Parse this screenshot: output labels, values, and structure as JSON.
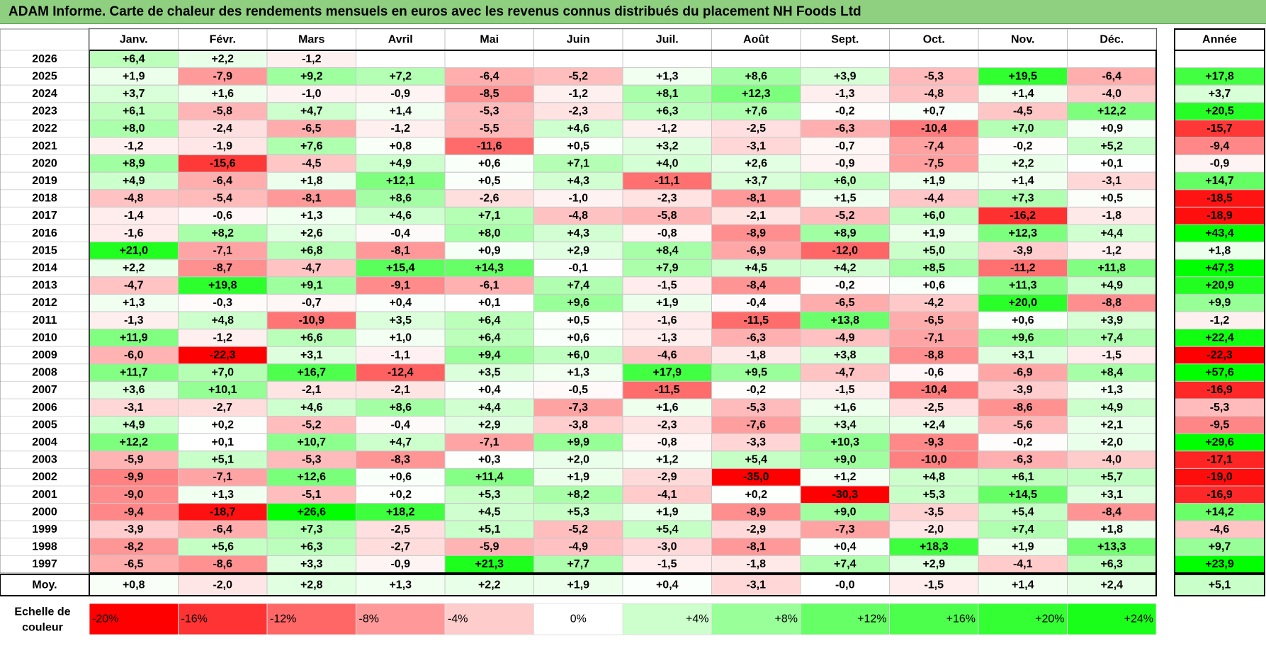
{
  "title": "ADAM Informe. Carte de chaleur des rendements mensuels en euros avec les revenus connus distribués du placement NH Foods Ltd",
  "chart_data": {
    "type": "heatmap",
    "columns": [
      "Janv.",
      "Févr.",
      "Mars",
      "Avril",
      "Mai",
      "Juin",
      "Juil.",
      "Août",
      "Sept.",
      "Oct.",
      "Nov.",
      "Déc."
    ],
    "year_column": "Année",
    "rows": [
      {
        "year": "2026",
        "months": [
          "+6,4",
          "+2,2",
          "-1,2",
          "",
          "",
          "",
          "",
          "",
          "",
          "",
          "",
          ""
        ],
        "annual": ""
      },
      {
        "year": "2025",
        "months": [
          "+1,9",
          "-7,9",
          "+9,2",
          "+7,2",
          "-6,4",
          "-5,2",
          "+1,3",
          "+8,6",
          "+3,9",
          "-5,3",
          "+19,5",
          "-6,4"
        ],
        "annual": "+17,8"
      },
      {
        "year": "2024",
        "months": [
          "+3,7",
          "+1,6",
          "-1,0",
          "-0,9",
          "-8,5",
          "-1,2",
          "+8,1",
          "+12,3",
          "-1,3",
          "-4,8",
          "+1,4",
          "-4,0"
        ],
        "annual": "+3,7"
      },
      {
        "year": "2023",
        "months": [
          "+6,1",
          "-5,8",
          "+4,7",
          "+1,4",
          "-5,3",
          "-2,3",
          "+6,3",
          "+7,6",
          "-0,2",
          "+0,7",
          "-4,5",
          "+12,2"
        ],
        "annual": "+20,5"
      },
      {
        "year": "2022",
        "months": [
          "+8,0",
          "-2,4",
          "-6,5",
          "-1,2",
          "-5,5",
          "+4,6",
          "-1,2",
          "-2,5",
          "-6,3",
          "-10,4",
          "+7,0",
          "+0,9"
        ],
        "annual": "-15,7"
      },
      {
        "year": "2021",
        "months": [
          "-1,2",
          "-1,9",
          "+7,6",
          "+0,8",
          "-11,6",
          "+0,5",
          "+3,2",
          "-3,1",
          "-0,7",
          "-7,4",
          "-0,2",
          "+5,2"
        ],
        "annual": "-9,4"
      },
      {
        "year": "2020",
        "months": [
          "+8,9",
          "-15,6",
          "-4,5",
          "+4,9",
          "+0,6",
          "+7,1",
          "+4,0",
          "+2,6",
          "-0,9",
          "-7,5",
          "+2,2",
          "+0,1"
        ],
        "annual": "-0,9"
      },
      {
        "year": "2019",
        "months": [
          "+4,9",
          "-6,4",
          "+1,8",
          "+12,1",
          "+0,5",
          "+4,3",
          "-11,1",
          "+3,7",
          "+6,0",
          "+1,9",
          "+1,4",
          "-3,1"
        ],
        "annual": "+14,7"
      },
      {
        "year": "2018",
        "months": [
          "-4,8",
          "-5,4",
          "-8,1",
          "+8,6",
          "-2,6",
          "-1,0",
          "-2,3",
          "-8,1",
          "+1,5",
          "-4,4",
          "+7,3",
          "+0,5"
        ],
        "annual": "-18,5"
      },
      {
        "year": "2017",
        "months": [
          "-1,4",
          "-0,6",
          "+1,3",
          "+4,6",
          "+7,1",
          "-4,8",
          "-5,8",
          "-2,1",
          "-5,2",
          "+6,0",
          "-16,2",
          "-1,8"
        ],
        "annual": "-18,9"
      },
      {
        "year": "2016",
        "months": [
          "-1,6",
          "+8,2",
          "+2,6",
          "-0,4",
          "+8,0",
          "+4,3",
          "-0,8",
          "-8,9",
          "+8,9",
          "+1,9",
          "+12,3",
          "+4,4"
        ],
        "annual": "+43,4"
      },
      {
        "year": "2015",
        "months": [
          "+21,0",
          "-7,1",
          "+6,8",
          "-8,1",
          "+0,9",
          "+2,9",
          "+8,4",
          "-6,9",
          "-12,0",
          "+5,0",
          "-3,9",
          "-1,2"
        ],
        "annual": "+1,8"
      },
      {
        "year": "2014",
        "months": [
          "+2,2",
          "-8,7",
          "-4,7",
          "+15,4",
          "+14,3",
          "-0,1",
          "+7,9",
          "+4,5",
          "+4,2",
          "+8,5",
          "-11,2",
          "+11,8"
        ],
        "annual": "+47,3"
      },
      {
        "year": "2013",
        "months": [
          "-4,7",
          "+19,8",
          "+9,1",
          "-9,1",
          "-6,1",
          "+7,4",
          "-1,5",
          "-8,4",
          "-0,2",
          "+0,6",
          "+11,3",
          "+4,9"
        ],
        "annual": "+20,9"
      },
      {
        "year": "2012",
        "months": [
          "+1,3",
          "-0,3",
          "-0,7",
          "+0,4",
          "+0,1",
          "+9,6",
          "+1,9",
          "-0,4",
          "-6,5",
          "-4,2",
          "+20,0",
          "-8,8"
        ],
        "annual": "+9,9"
      },
      {
        "year": "2011",
        "months": [
          "-1,3",
          "+4,8",
          "-10,9",
          "+3,5",
          "+6,4",
          "+0,5",
          "-1,6",
          "-11,5",
          "+13,8",
          "-6,5",
          "+0,6",
          "+3,9"
        ],
        "annual": "-1,2"
      },
      {
        "year": "2010",
        "months": [
          "+11,9",
          "-1,2",
          "+6,6",
          "+1,0",
          "+6,4",
          "+0,6",
          "-1,3",
          "-6,3",
          "-4,9",
          "-7,1",
          "+9,6",
          "+7,4"
        ],
        "annual": "+22,4"
      },
      {
        "year": "2009",
        "months": [
          "-6,0",
          "-22,3",
          "+3,1",
          "-1,1",
          "+9,4",
          "+6,0",
          "-4,6",
          "-1,8",
          "+3,8",
          "-8,8",
          "+3,1",
          "-1,5"
        ],
        "annual": "-22,3"
      },
      {
        "year": "2008",
        "months": [
          "+11,7",
          "+7,0",
          "+16,7",
          "-12,4",
          "+3,5",
          "+1,3",
          "+17,9",
          "+9,5",
          "-4,7",
          "-0,6",
          "-6,9",
          "+8,4"
        ],
        "annual": "+57,6"
      },
      {
        "year": "2007",
        "months": [
          "+3,6",
          "+10,1",
          "-2,1",
          "-2,1",
          "+0,4",
          "-0,5",
          "-11,5",
          "-0,2",
          "-1,5",
          "-10,4",
          "-3,9",
          "+1,3"
        ],
        "annual": "-16,9"
      },
      {
        "year": "2006",
        "months": [
          "-3,1",
          "-2,7",
          "+4,6",
          "+8,6",
          "+4,4",
          "-7,3",
          "+1,6",
          "-5,3",
          "+1,6",
          "-2,5",
          "-8,6",
          "+4,9"
        ],
        "annual": "-5,3"
      },
      {
        "year": "2005",
        "months": [
          "+4,9",
          "+0,2",
          "-5,2",
          "-0,4",
          "+2,9",
          "-3,8",
          "-2,3",
          "-7,6",
          "+3,4",
          "+2,4",
          "-5,6",
          "+2,1"
        ],
        "annual": "-9,5"
      },
      {
        "year": "2004",
        "months": [
          "+12,2",
          "+0,1",
          "+10,7",
          "+4,7",
          "-7,1",
          "+9,9",
          "-0,8",
          "-3,3",
          "+10,3",
          "-9,3",
          "-0,2",
          "+2,0"
        ],
        "annual": "+29,6"
      },
      {
        "year": "2003",
        "months": [
          "-5,9",
          "+5,1",
          "-5,3",
          "-8,3",
          "+0,3",
          "+2,0",
          "+1,2",
          "+5,4",
          "+9,0",
          "-10,0",
          "-6,3",
          "-4,0"
        ],
        "annual": "-17,1"
      },
      {
        "year": "2002",
        "months": [
          "-9,9",
          "-7,1",
          "+12,6",
          "+0,6",
          "+11,4",
          "+1,9",
          "-2,9",
          "-35,0",
          "+1,2",
          "+4,8",
          "+6,1",
          "+5,7"
        ],
        "annual": "-19,0"
      },
      {
        "year": "2001",
        "months": [
          "-9,0",
          "+1,3",
          "-5,1",
          "+0,2",
          "+5,3",
          "+8,2",
          "-4,1",
          "+0,2",
          "-30,3",
          "+5,3",
          "+14,5",
          "+3,1"
        ],
        "annual": "-16,9"
      },
      {
        "year": "2000",
        "months": [
          "-9,4",
          "-18,7",
          "+26,6",
          "+18,2",
          "+4,5",
          "+5,3",
          "+1,9",
          "-8,9",
          "+9,0",
          "-3,5",
          "+5,4",
          "-8,4"
        ],
        "annual": "+14,2"
      },
      {
        "year": "1999",
        "months": [
          "-3,9",
          "-6,4",
          "+7,3",
          "-2,5",
          "+5,1",
          "-5,2",
          "+5,4",
          "-2,9",
          "-7,3",
          "-2,0",
          "+7,4",
          "+1,8"
        ],
        "annual": "-4,6"
      },
      {
        "year": "1998",
        "months": [
          "-8,2",
          "+5,6",
          "+6,3",
          "-2,7",
          "-5,9",
          "-4,9",
          "-3,0",
          "-8,1",
          "+0,4",
          "+18,3",
          "+1,9",
          "+13,3"
        ],
        "annual": "+9,7"
      },
      {
        "year": "1997",
        "months": [
          "-6,5",
          "-8,6",
          "+3,3",
          "-0,9",
          "+21,3",
          "+7,7",
          "-1,5",
          "-1,8",
          "+7,4",
          "+2,9",
          "-4,1",
          "+6,3"
        ],
        "annual": "+23,9"
      }
    ],
    "average": {
      "label": "Moy.",
      "months": [
        "+0,8",
        "-2,0",
        "+2,8",
        "+1,3",
        "+2,2",
        "+1,9",
        "+0,4",
        "-3,1",
        "-0,0",
        "-1,5",
        "+1,4",
        "+2,4"
      ],
      "annual": "+5,1"
    },
    "legend": {
      "title_lines": [
        "Echelle de",
        "couleur"
      ],
      "stops": [
        {
          "label": "-20%",
          "value": -20,
          "color": "#ff0000"
        },
        {
          "label": "-16%",
          "value": -16,
          "color": "#ff3333"
        },
        {
          "label": "-12%",
          "value": -12,
          "color": "#ff6666"
        },
        {
          "label": "-8%",
          "value": -8,
          "color": "#ff9999"
        },
        {
          "label": "-4%",
          "value": -4,
          "color": "#ffcccc"
        },
        {
          "label": "0%",
          "value": 0,
          "color": "#ffffff"
        },
        {
          "label": "+4%",
          "value": 4,
          "color": "#ccffcc"
        },
        {
          "label": "+8%",
          "value": 8,
          "color": "#99ff99"
        },
        {
          "label": "+12%",
          "value": 12,
          "color": "#66ff66"
        },
        {
          "label": "+16%",
          "value": 16,
          "color": "#4dff4d"
        },
        {
          "label": "+20%",
          "value": 20,
          "color": "#33ff33"
        },
        {
          "label": "+24%",
          "value": 24,
          "color": "#1aff1a"
        }
      ]
    },
    "colors": {
      "negative_max": "#ff0000",
      "zero": "#ffffff",
      "positive_max": "#00ff00",
      "title_bar": "#8fcf80"
    }
  }
}
